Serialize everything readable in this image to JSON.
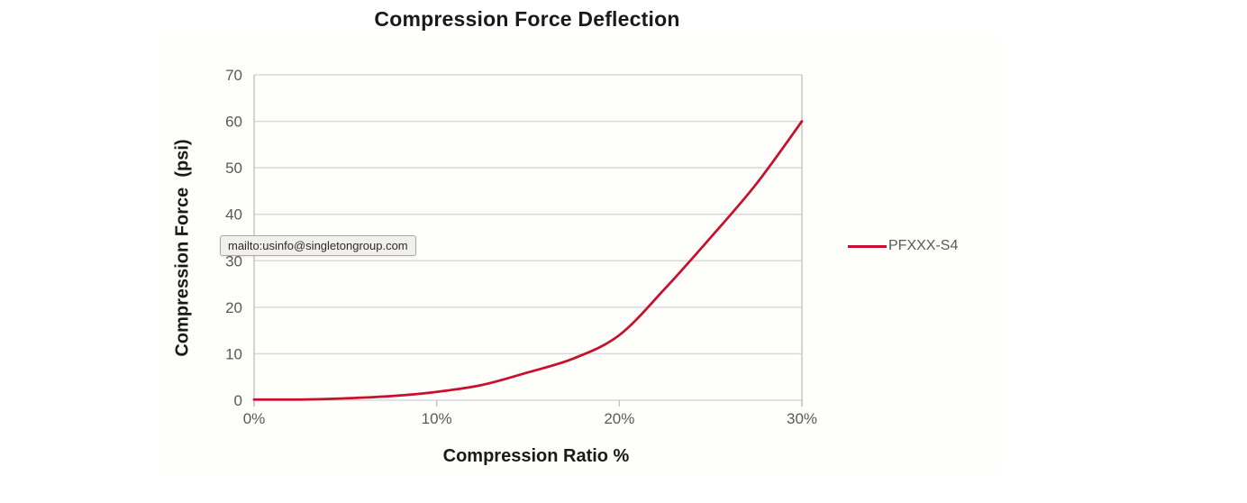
{
  "title": "Compression Force Deflection",
  "axes": {
    "y_title": "Compression Force  (psi)",
    "x_title": "Compression Ratio %"
  },
  "legend": {
    "label": "PFXXX-S4"
  },
  "status_tooltip": {
    "text": "mailto:usinfo@singletongroup.com"
  },
  "colors": {
    "series": "#C8102E",
    "grid": "#D9D9D9",
    "axis": "#C6C6C6",
    "tick_label": "#595959",
    "title_text": "#1A1A1A",
    "tooltip_bg": "#F1F0EF",
    "tooltip_border": "#A9A9A9",
    "chart_background": "#FEFEFB"
  },
  "chart_data": {
    "type": "line",
    "title": "Compression Force Deflection",
    "xlabel": "Compression Ratio %",
    "ylabel": "Compression Force (psi)",
    "xlim": [
      0,
      30
    ],
    "ylim": [
      0,
      70
    ],
    "grid": true,
    "legend_position": "right",
    "x_ticks": [
      {
        "value": 0,
        "label": "0%"
      },
      {
        "value": 10,
        "label": "10%"
      },
      {
        "value": 20,
        "label": "20%"
      },
      {
        "value": 30,
        "label": "30%"
      }
    ],
    "y_ticks": [
      0,
      10,
      20,
      30,
      40,
      50,
      60,
      70
    ],
    "series": [
      {
        "name": "PFXXX-S4",
        "color": "#C8102E",
        "x": [
          0,
          2.5,
          5,
          7.5,
          10,
          12.5,
          15,
          17.5,
          20,
          22.5,
          25,
          27.5,
          30
        ],
        "y": [
          0,
          0.1,
          0.4,
          0.9,
          1.8,
          3.3,
          6,
          9,
          14,
          24,
          35,
          46.5,
          60
        ]
      }
    ]
  }
}
